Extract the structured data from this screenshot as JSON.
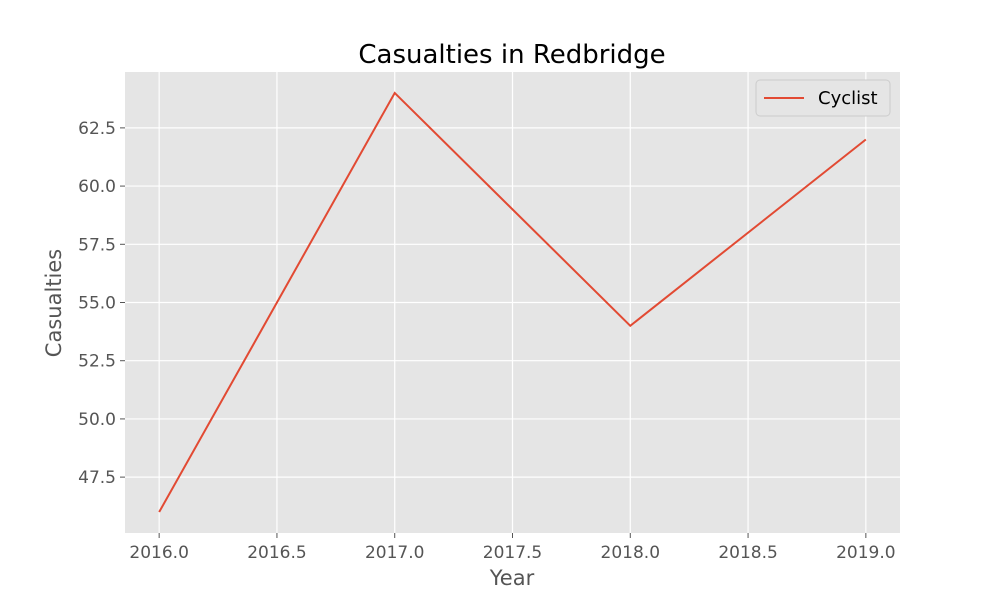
{
  "chart_data": {
    "type": "line",
    "title": "Casualties in Redbridge",
    "xlabel": "Year",
    "ylabel": "Casualties",
    "xlim": [
      2015.855,
      2019.145
    ],
    "ylim": [
      45.1,
      64.9
    ],
    "xticks": [
      2016.0,
      2016.5,
      2017.0,
      2017.5,
      2018.0,
      2018.5,
      2019.0
    ],
    "xtick_labels": [
      "2016.0",
      "2016.5",
      "2017.0",
      "2017.5",
      "2018.0",
      "2018.5",
      "2019.0"
    ],
    "yticks": [
      47.5,
      50.0,
      52.5,
      55.0,
      57.5,
      60.0,
      62.5
    ],
    "ytick_labels": [
      "47.5",
      "50.0",
      "52.5",
      "55.0",
      "57.5",
      "60.0",
      "62.5"
    ],
    "grid": true,
    "legend_position": "top-right",
    "x": [
      2016,
      2017,
      2018,
      2019
    ],
    "series": [
      {
        "name": "Cyclist",
        "color": "#e24a33",
        "values": [
          46,
          64,
          54,
          62
        ]
      }
    ],
    "background_color": "#e5e5e5"
  }
}
